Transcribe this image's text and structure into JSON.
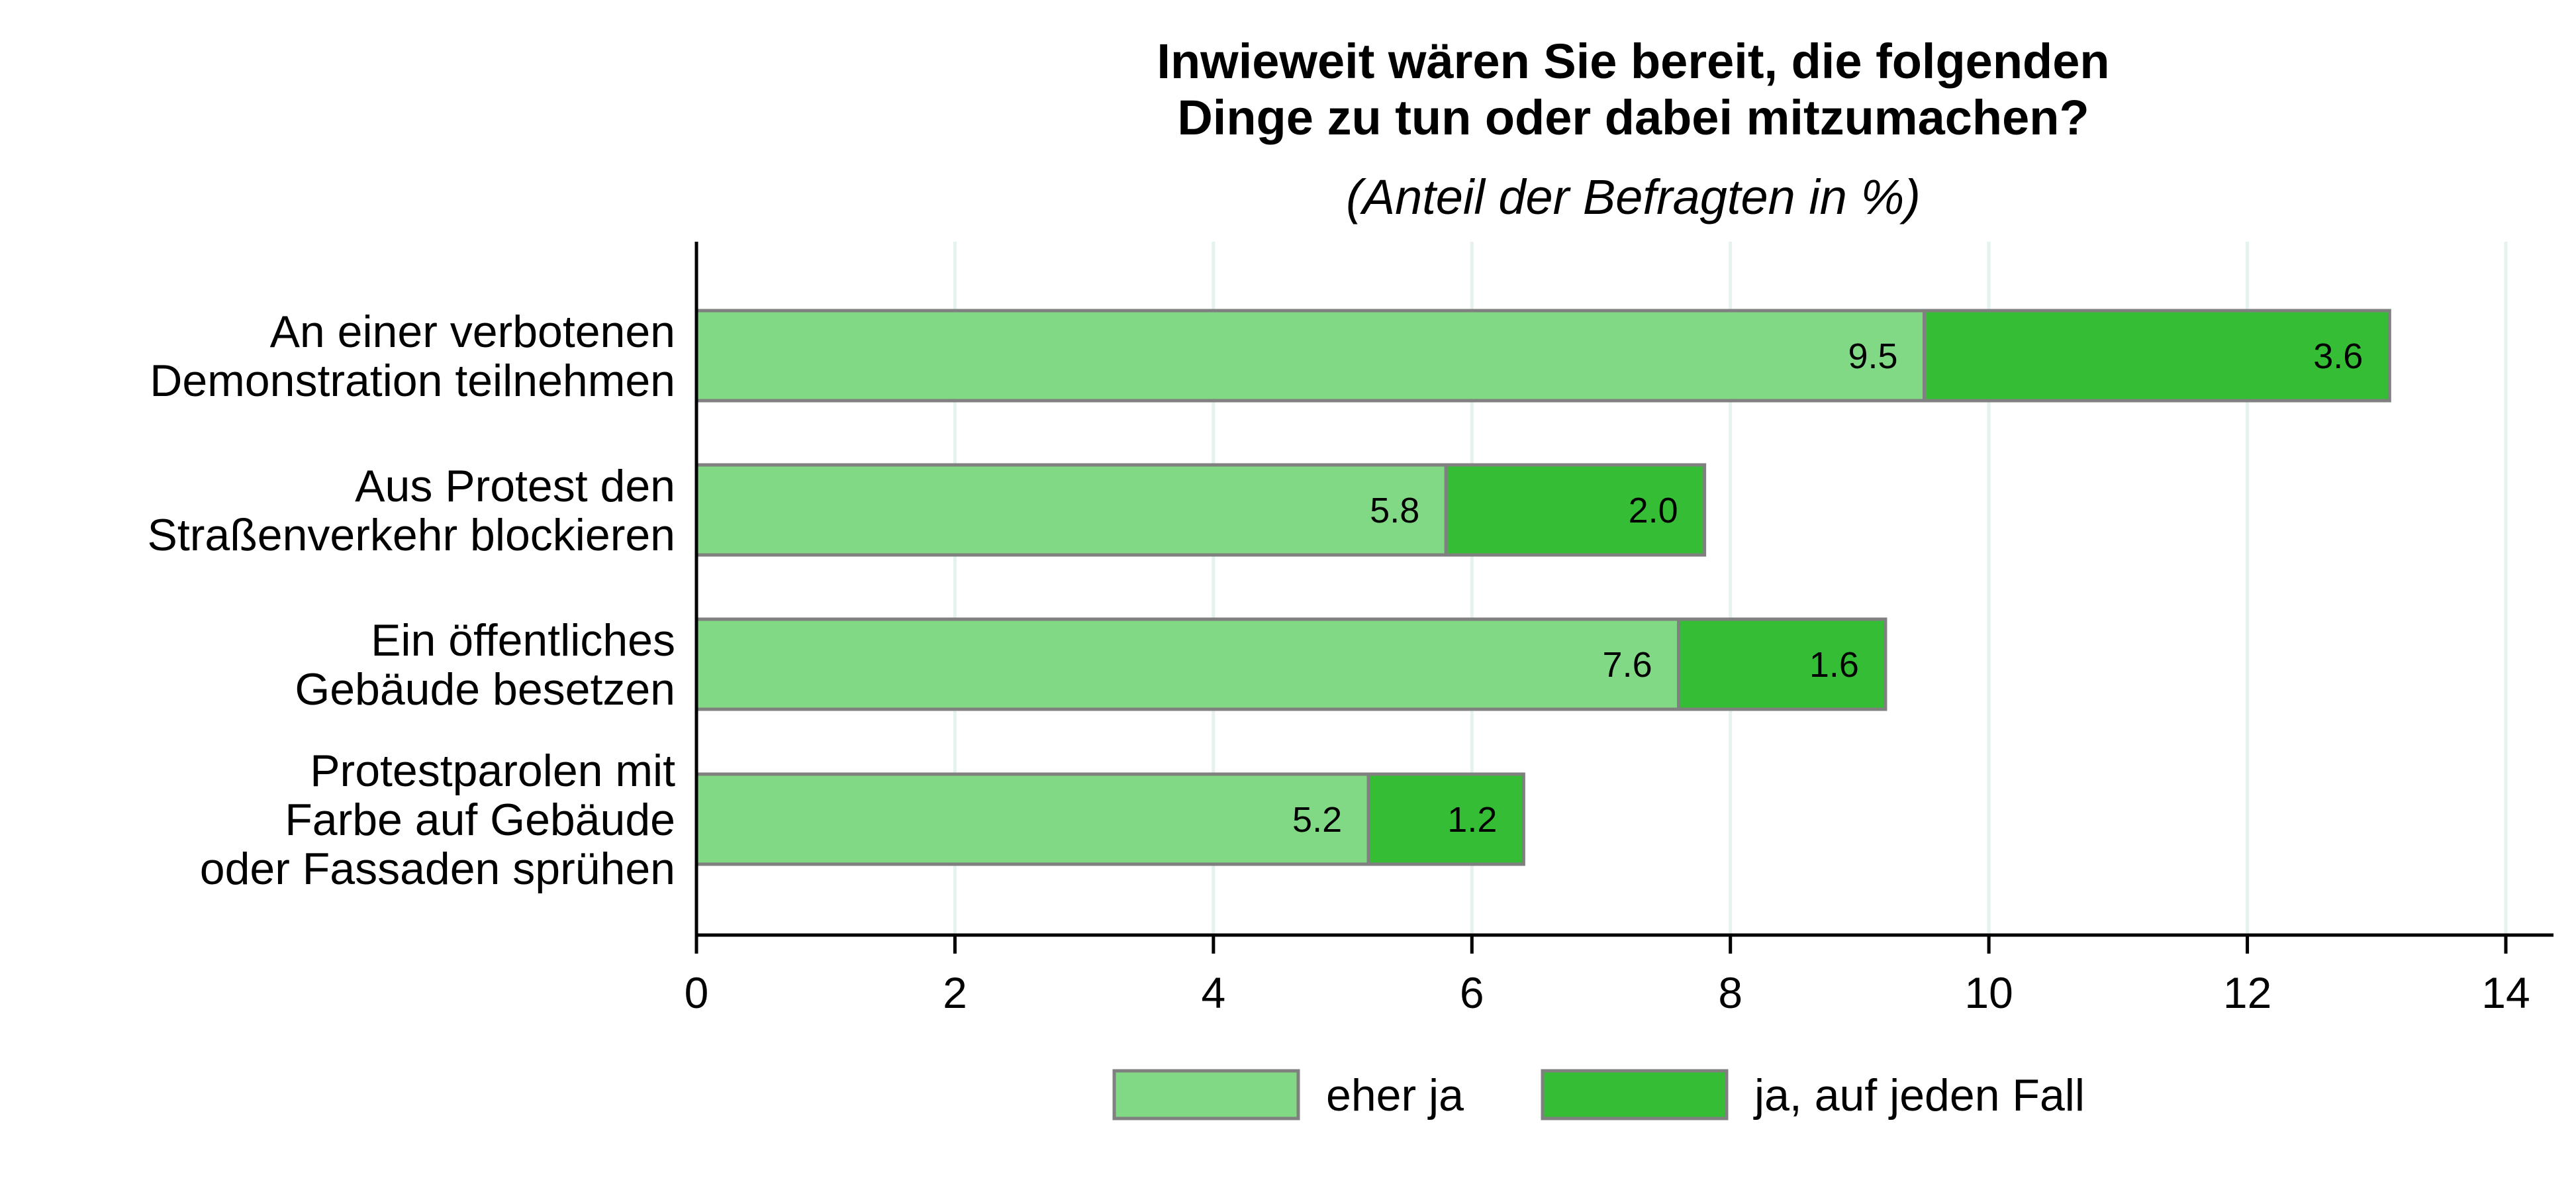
{
  "chart_data": {
    "type": "bar",
    "orientation": "horizontal",
    "stacked": true,
    "title_lines": [
      "Inwieweit wären Sie bereit, die folgenden",
      "Dinge zu tun oder dabei mitzumachen?"
    ],
    "subtitle": "(Anteil der Befragten in %)",
    "categories": [
      [
        "An einer verbotenen",
        "Demonstration teilnehmen"
      ],
      [
        "Aus Protest den",
        "Straßenverkehr blockieren"
      ],
      [
        "Ein öffentliches",
        "Gebäude besetzen"
      ],
      [
        "Protestparolen mit",
        "Farbe auf Gebäude",
        "oder Fassaden sprühen"
      ]
    ],
    "series": [
      {
        "name": "eher ja",
        "color": "#82d985",
        "values": [
          9.5,
          5.8,
          7.6,
          5.2
        ],
        "labels": [
          "9.5",
          "5.8",
          "7.6",
          "5.2"
        ]
      },
      {
        "name": "ja, auf jeden Fall",
        "color": "#35be35",
        "values": [
          3.6,
          2.0,
          1.6,
          1.2
        ],
        "labels": [
          "3.6",
          "2.0",
          "1.6",
          "1.2"
        ]
      }
    ],
    "xlim": [
      0,
      14
    ],
    "xticks": [
      0,
      2,
      4,
      6,
      8,
      10,
      12,
      14
    ],
    "xtick_labels": [
      "0",
      "2",
      "4",
      "6",
      "8",
      "10",
      "12",
      "14"
    ],
    "grid": "vertical",
    "grid_color": "#e5f2ef",
    "bar_edge_color": "#808080",
    "legend_position": "bottom"
  }
}
